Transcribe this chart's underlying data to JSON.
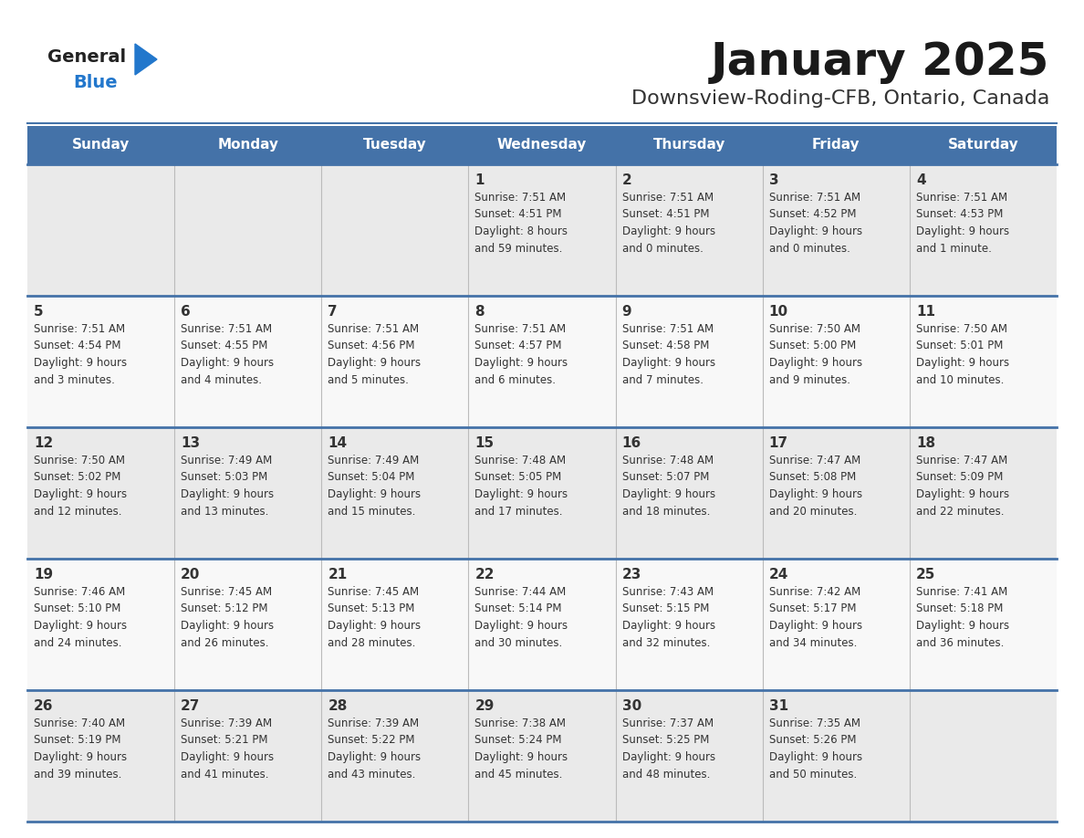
{
  "title": "January 2025",
  "subtitle": "Downsview-Roding-CFB, Ontario, Canada",
  "days_of_week": [
    "Sunday",
    "Monday",
    "Tuesday",
    "Wednesday",
    "Thursday",
    "Friday",
    "Saturday"
  ],
  "header_bg": "#4472A8",
  "header_text": "#FFFFFF",
  "cell_bg_odd": "#EAEAEA",
  "cell_bg_even": "#F8F8F8",
  "cell_text": "#333333",
  "title_color": "#1a1a1a",
  "subtitle_color": "#333333",
  "grid_line_color": "#4472A8",
  "sep_line_color": "#AAAAAA",
  "logo_general_color": "#222222",
  "logo_blue_color": "#2277CC",
  "weeks": [
    [
      {
        "day": "",
        "sunrise": "",
        "sunset": "",
        "daylight": ""
      },
      {
        "day": "",
        "sunrise": "",
        "sunset": "",
        "daylight": ""
      },
      {
        "day": "",
        "sunrise": "",
        "sunset": "",
        "daylight": ""
      },
      {
        "day": "1",
        "sunrise": "7:51 AM",
        "sunset": "4:51 PM",
        "daylight": "8 hours and 59 minutes."
      },
      {
        "day": "2",
        "sunrise": "7:51 AM",
        "sunset": "4:51 PM",
        "daylight": "9 hours and 0 minutes."
      },
      {
        "day": "3",
        "sunrise": "7:51 AM",
        "sunset": "4:52 PM",
        "daylight": "9 hours and 0 minutes."
      },
      {
        "day": "4",
        "sunrise": "7:51 AM",
        "sunset": "4:53 PM",
        "daylight": "9 hours and 1 minute."
      }
    ],
    [
      {
        "day": "5",
        "sunrise": "7:51 AM",
        "sunset": "4:54 PM",
        "daylight": "9 hours and 3 minutes."
      },
      {
        "day": "6",
        "sunrise": "7:51 AM",
        "sunset": "4:55 PM",
        "daylight": "9 hours and 4 minutes."
      },
      {
        "day": "7",
        "sunrise": "7:51 AM",
        "sunset": "4:56 PM",
        "daylight": "9 hours and 5 minutes."
      },
      {
        "day": "8",
        "sunrise": "7:51 AM",
        "sunset": "4:57 PM",
        "daylight": "9 hours and 6 minutes."
      },
      {
        "day": "9",
        "sunrise": "7:51 AM",
        "sunset": "4:58 PM",
        "daylight": "9 hours and 7 minutes."
      },
      {
        "day": "10",
        "sunrise": "7:50 AM",
        "sunset": "5:00 PM",
        "daylight": "9 hours and 9 minutes."
      },
      {
        "day": "11",
        "sunrise": "7:50 AM",
        "sunset": "5:01 PM",
        "daylight": "9 hours and 10 minutes."
      }
    ],
    [
      {
        "day": "12",
        "sunrise": "7:50 AM",
        "sunset": "5:02 PM",
        "daylight": "9 hours and 12 minutes."
      },
      {
        "day": "13",
        "sunrise": "7:49 AM",
        "sunset": "5:03 PM",
        "daylight": "9 hours and 13 minutes."
      },
      {
        "day": "14",
        "sunrise": "7:49 AM",
        "sunset": "5:04 PM",
        "daylight": "9 hours and 15 minutes."
      },
      {
        "day": "15",
        "sunrise": "7:48 AM",
        "sunset": "5:05 PM",
        "daylight": "9 hours and 17 minutes."
      },
      {
        "day": "16",
        "sunrise": "7:48 AM",
        "sunset": "5:07 PM",
        "daylight": "9 hours and 18 minutes."
      },
      {
        "day": "17",
        "sunrise": "7:47 AM",
        "sunset": "5:08 PM",
        "daylight": "9 hours and 20 minutes."
      },
      {
        "day": "18",
        "sunrise": "7:47 AM",
        "sunset": "5:09 PM",
        "daylight": "9 hours and 22 minutes."
      }
    ],
    [
      {
        "day": "19",
        "sunrise": "7:46 AM",
        "sunset": "5:10 PM",
        "daylight": "9 hours and 24 minutes."
      },
      {
        "day": "20",
        "sunrise": "7:45 AM",
        "sunset": "5:12 PM",
        "daylight": "9 hours and 26 minutes."
      },
      {
        "day": "21",
        "sunrise": "7:45 AM",
        "sunset": "5:13 PM",
        "daylight": "9 hours and 28 minutes."
      },
      {
        "day": "22",
        "sunrise": "7:44 AM",
        "sunset": "5:14 PM",
        "daylight": "9 hours and 30 minutes."
      },
      {
        "day": "23",
        "sunrise": "7:43 AM",
        "sunset": "5:15 PM",
        "daylight": "9 hours and 32 minutes."
      },
      {
        "day": "24",
        "sunrise": "7:42 AM",
        "sunset": "5:17 PM",
        "daylight": "9 hours and 34 minutes."
      },
      {
        "day": "25",
        "sunrise": "7:41 AM",
        "sunset": "5:18 PM",
        "daylight": "9 hours and 36 minutes."
      }
    ],
    [
      {
        "day": "26",
        "sunrise": "7:40 AM",
        "sunset": "5:19 PM",
        "daylight": "9 hours and 39 minutes."
      },
      {
        "day": "27",
        "sunrise": "7:39 AM",
        "sunset": "5:21 PM",
        "daylight": "9 hours and 41 minutes."
      },
      {
        "day": "28",
        "sunrise": "7:39 AM",
        "sunset": "5:22 PM",
        "daylight": "9 hours and 43 minutes."
      },
      {
        "day": "29",
        "sunrise": "7:38 AM",
        "sunset": "5:24 PM",
        "daylight": "9 hours and 45 minutes."
      },
      {
        "day": "30",
        "sunrise": "7:37 AM",
        "sunset": "5:25 PM",
        "daylight": "9 hours and 48 minutes."
      },
      {
        "day": "31",
        "sunrise": "7:35 AM",
        "sunset": "5:26 PM",
        "daylight": "9 hours and 50 minutes."
      },
      {
        "day": "",
        "sunrise": "",
        "sunset": "",
        "daylight": ""
      }
    ]
  ]
}
